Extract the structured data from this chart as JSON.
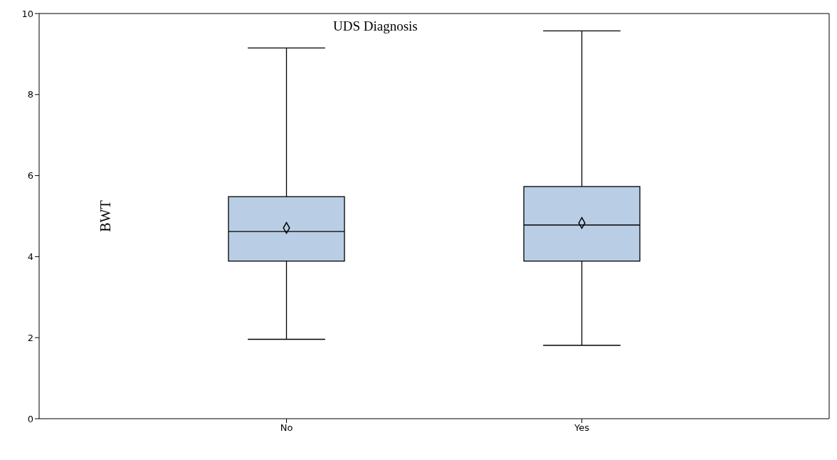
{
  "chart_data": {
    "type": "box",
    "title": "UDS Diagnosis",
    "ylabel": "BWT",
    "categories": [
      "No",
      "Yes"
    ],
    "boxes": [
      {
        "low": 1.96,
        "q1": 3.89,
        "median": 4.62,
        "q3": 5.48,
        "high": 9.15,
        "mean": 4.71
      },
      {
        "low": 1.81,
        "q1": 3.89,
        "median": 4.78,
        "q3": 5.73,
        "high": 9.57,
        "mean": 4.83
      }
    ],
    "color": "#b9cde5",
    "ylim": [
      0,
      10
    ],
    "yticks": [
      0,
      2,
      4,
      6,
      8,
      10
    ],
    "grid": false,
    "marker": "diamond"
  }
}
